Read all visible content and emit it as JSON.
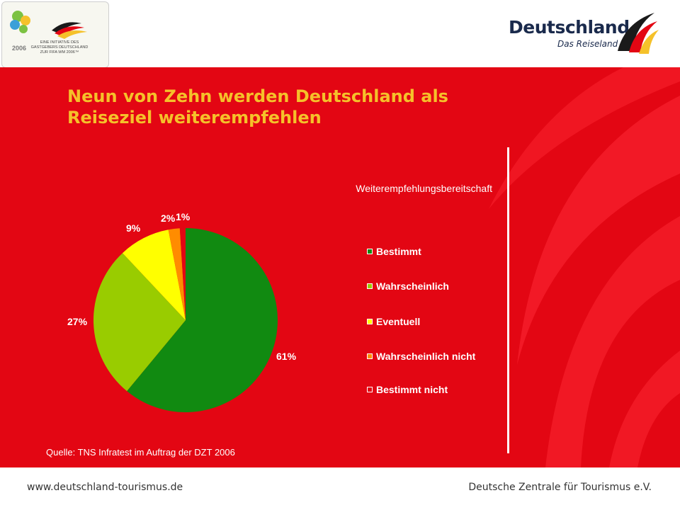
{
  "header": {
    "wm_logo": {
      "caption": "EINE INITIATIVE DES GASTGEBERS DEUTSCHLAND ZUR FIFA WM 2006™",
      "year": "2006"
    },
    "de_logo": {
      "brand": "Deutschland",
      "tagline": "Das Reiseland"
    }
  },
  "slide": {
    "title": "Neun von Zehn werden Deutschland als Reiseziel weiterempfehlen",
    "source": "Quelle: TNS Infratest im Auftrag der DZT 2006"
  },
  "chart_data": {
    "type": "pie",
    "title": "Weiterempfehlungsbereitschaft",
    "categories": [
      "Bestimmt",
      "Wahrscheinlich",
      "Eventuell",
      "Wahrscheinlich nicht",
      "Bestimmt nicht"
    ],
    "values": [
      61,
      27,
      9,
      2,
      1
    ],
    "labels": [
      "61%",
      "27%",
      "9%",
      "2%",
      "1%"
    ],
    "colors": [
      "#118a11",
      "#99cc00",
      "#ffff00",
      "#ff8c00",
      "#e30613"
    ],
    "legend_position": "right"
  },
  "footer": {
    "url": "www.deutschland-tourismus.de",
    "organization": "Deutsche Zentrale für Tourismus e.V."
  },
  "colors": {
    "panel_red": "#e30613",
    "title_yellow": "#f5c12a",
    "brand_navy": "#1a2a4c"
  }
}
